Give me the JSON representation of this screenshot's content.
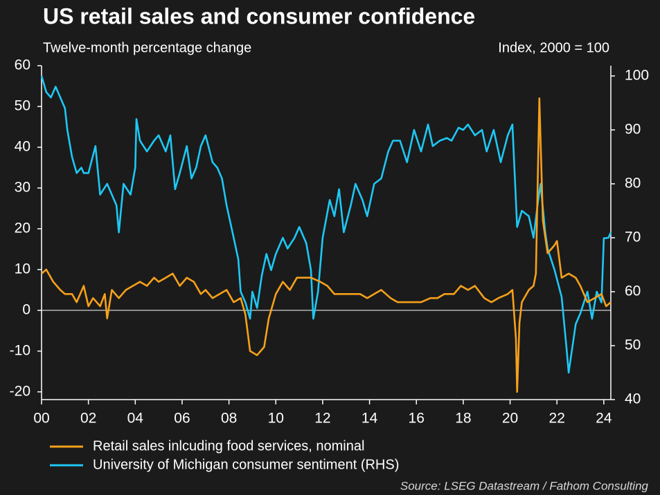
{
  "chart_data": {
    "type": "line",
    "title": "US retail sales and consumer confidence",
    "subtitle": "Twelve-month percentage change",
    "y2_label": "Index, 2000 = 100",
    "source": "Source: LSEG Datastream / Fathom Consulting",
    "xlim": [
      2000,
      2024.3
    ],
    "xticks": [
      {
        "value": 2000,
        "label": "00"
      },
      {
        "value": 2002,
        "label": "02"
      },
      {
        "value": 2004,
        "label": "04"
      },
      {
        "value": 2006,
        "label": "06"
      },
      {
        "value": 2008,
        "label": "08"
      },
      {
        "value": 2010,
        "label": "10"
      },
      {
        "value": 2012,
        "label": "12"
      },
      {
        "value": 2014,
        "label": "14"
      },
      {
        "value": 2016,
        "label": "16"
      },
      {
        "value": 2018,
        "label": "18"
      },
      {
        "value": 2020,
        "label": "20"
      },
      {
        "value": 2022,
        "label": "22"
      },
      {
        "value": 2024,
        "label": "24"
      }
    ],
    "ylim": [
      -21.9,
      60
    ],
    "yticks": [
      -20,
      -10,
      0,
      10,
      20,
      30,
      40,
      50,
      60
    ],
    "y2lim": [
      40,
      101.9
    ],
    "y2ticks": [
      40,
      50,
      60,
      70,
      80,
      90,
      100
    ],
    "series": [
      {
        "name": "Retail sales inlcuding food services, nominal",
        "color": "#f7a11a",
        "x": [
          2000,
          2000.2,
          2000.5,
          2000.8,
          2001.0,
          2001.3,
          2001.5,
          2001.8,
          2002.0,
          2002.2,
          2002.5,
          2002.7,
          2002.8,
          2003.0,
          2003.3,
          2003.6,
          2003.9,
          2004.2,
          2004.5,
          2004.8,
          2005.0,
          2005.3,
          2005.6,
          2005.9,
          2006.2,
          2006.5,
          2006.8,
          2007.0,
          2007.3,
          2007.6,
          2007.9,
          2008.2,
          2008.5,
          2008.7,
          2008.9,
          2009.2,
          2009.5,
          2009.7,
          2010.0,
          2010.3,
          2010.6,
          2010.9,
          2011.2,
          2011.5,
          2011.9,
          2012.2,
          2012.5,
          2012.9,
          2013.3,
          2013.6,
          2013.9,
          2014.2,
          2014.5,
          2014.9,
          2015.2,
          2015.6,
          2015.9,
          2016.2,
          2016.6,
          2016.9,
          2017.2,
          2017.6,
          2017.9,
          2018.2,
          2018.5,
          2018.9,
          2019.2,
          2019.5,
          2019.9,
          2020.1,
          2020.25,
          2020.3,
          2020.4,
          2020.5,
          2020.8,
          2021.0,
          2021.1,
          2021.25,
          2021.4,
          2021.6,
          2021.9,
          2022.0,
          2022.2,
          2022.5,
          2022.8,
          2023.0,
          2023.3,
          2023.6,
          2023.9,
          2024.1,
          2024.3
        ],
        "values": [
          9,
          10,
          7,
          5,
          4,
          4,
          2,
          6,
          1,
          3,
          1,
          4,
          -2,
          5,
          3,
          5,
          6,
          7,
          6,
          8,
          7,
          8,
          9,
          6,
          8,
          7,
          4,
          5,
          3,
          4,
          5,
          2,
          3,
          -1,
          -10,
          -11,
          -9,
          -2,
          4,
          7,
          5,
          8,
          8,
          8,
          7,
          6,
          4,
          4,
          4,
          4,
          3,
          4,
          5,
          3,
          2,
          2,
          2,
          2,
          3,
          3,
          4,
          4,
          6,
          5,
          6,
          3,
          2,
          3,
          4,
          5,
          -7,
          -20,
          -3,
          2,
          5,
          6,
          9,
          52,
          22,
          14,
          16,
          17,
          8,
          9,
          8,
          6,
          2,
          3,
          4,
          1,
          2
        ]
      },
      {
        "name": "University of Michigan consumer sentiment (RHS)",
        "color": "#1ec8f5",
        "axis": "y2",
        "x": [
          2000,
          2000.2,
          2000.4,
          2000.6,
          2000.8,
          2001.0,
          2001.1,
          2001.3,
          2001.5,
          2001.7,
          2001.8,
          2002.0,
          2002.3,
          2002.5,
          2002.8,
          2003.0,
          2003.2,
          2003.3,
          2003.5,
          2003.8,
          2004.0,
          2004.05,
          2004.2,
          2004.5,
          2004.8,
          2005.0,
          2005.3,
          2005.5,
          2005.7,
          2005.9,
          2006.2,
          2006.4,
          2006.6,
          2006.8,
          2007.0,
          2007.3,
          2007.5,
          2007.7,
          2007.9,
          2008.2,
          2008.4,
          2008.5,
          2008.7,
          2008.9,
          2009.0,
          2009.2,
          2009.4,
          2009.6,
          2009.8,
          2010.0,
          2010.3,
          2010.5,
          2010.8,
          2011.0,
          2011.3,
          2011.5,
          2011.6,
          2011.8,
          2012.0,
          2012.3,
          2012.5,
          2012.7,
          2012.9,
          2013.2,
          2013.4,
          2013.7,
          2013.9,
          2014.2,
          2014.5,
          2014.8,
          2015.0,
          2015.3,
          2015.6,
          2015.9,
          2016.2,
          2016.5,
          2016.7,
          2017.0,
          2017.3,
          2017.5,
          2017.8,
          2018.0,
          2018.2,
          2018.5,
          2018.8,
          2019.0,
          2019.3,
          2019.6,
          2019.9,
          2020.1,
          2020.3,
          2020.5,
          2020.8,
          2021.0,
          2021.2,
          2021.3,
          2021.5,
          2021.6,
          2021.9,
          2022.2,
          2022.4,
          2022.5,
          2022.8,
          2023.0,
          2023.3,
          2023.5,
          2023.7,
          2023.9,
          2024.0,
          2024.2,
          2024.3
        ],
        "values": [
          100,
          97,
          96,
          98,
          96,
          94,
          90,
          85,
          82,
          83,
          82,
          82,
          87,
          78,
          80,
          78,
          76,
          71,
          80,
          78,
          83,
          92,
          88,
          86,
          88,
          89,
          86,
          89,
          79,
          82,
          87,
          81,
          83,
          87,
          89,
          84,
          83,
          81,
          76,
          70,
          66,
          60,
          58,
          55,
          60,
          57,
          63,
          67,
          64,
          67,
          70,
          68,
          70,
          72,
          69,
          64,
          55,
          60,
          70,
          77,
          74,
          79,
          71,
          76,
          80,
          77,
          74,
          80,
          81,
          86,
          88,
          88,
          84,
          90,
          86,
          91,
          87,
          88,
          88.5,
          88,
          90.4,
          90,
          91,
          89,
          90,
          86,
          90,
          84,
          89,
          91,
          72,
          75,
          74,
          70,
          77,
          80,
          71,
          68,
          64,
          59,
          50,
          45,
          54,
          56,
          60,
          55,
          60,
          58,
          69.9,
          70,
          71
        ]
      }
    ]
  }
}
